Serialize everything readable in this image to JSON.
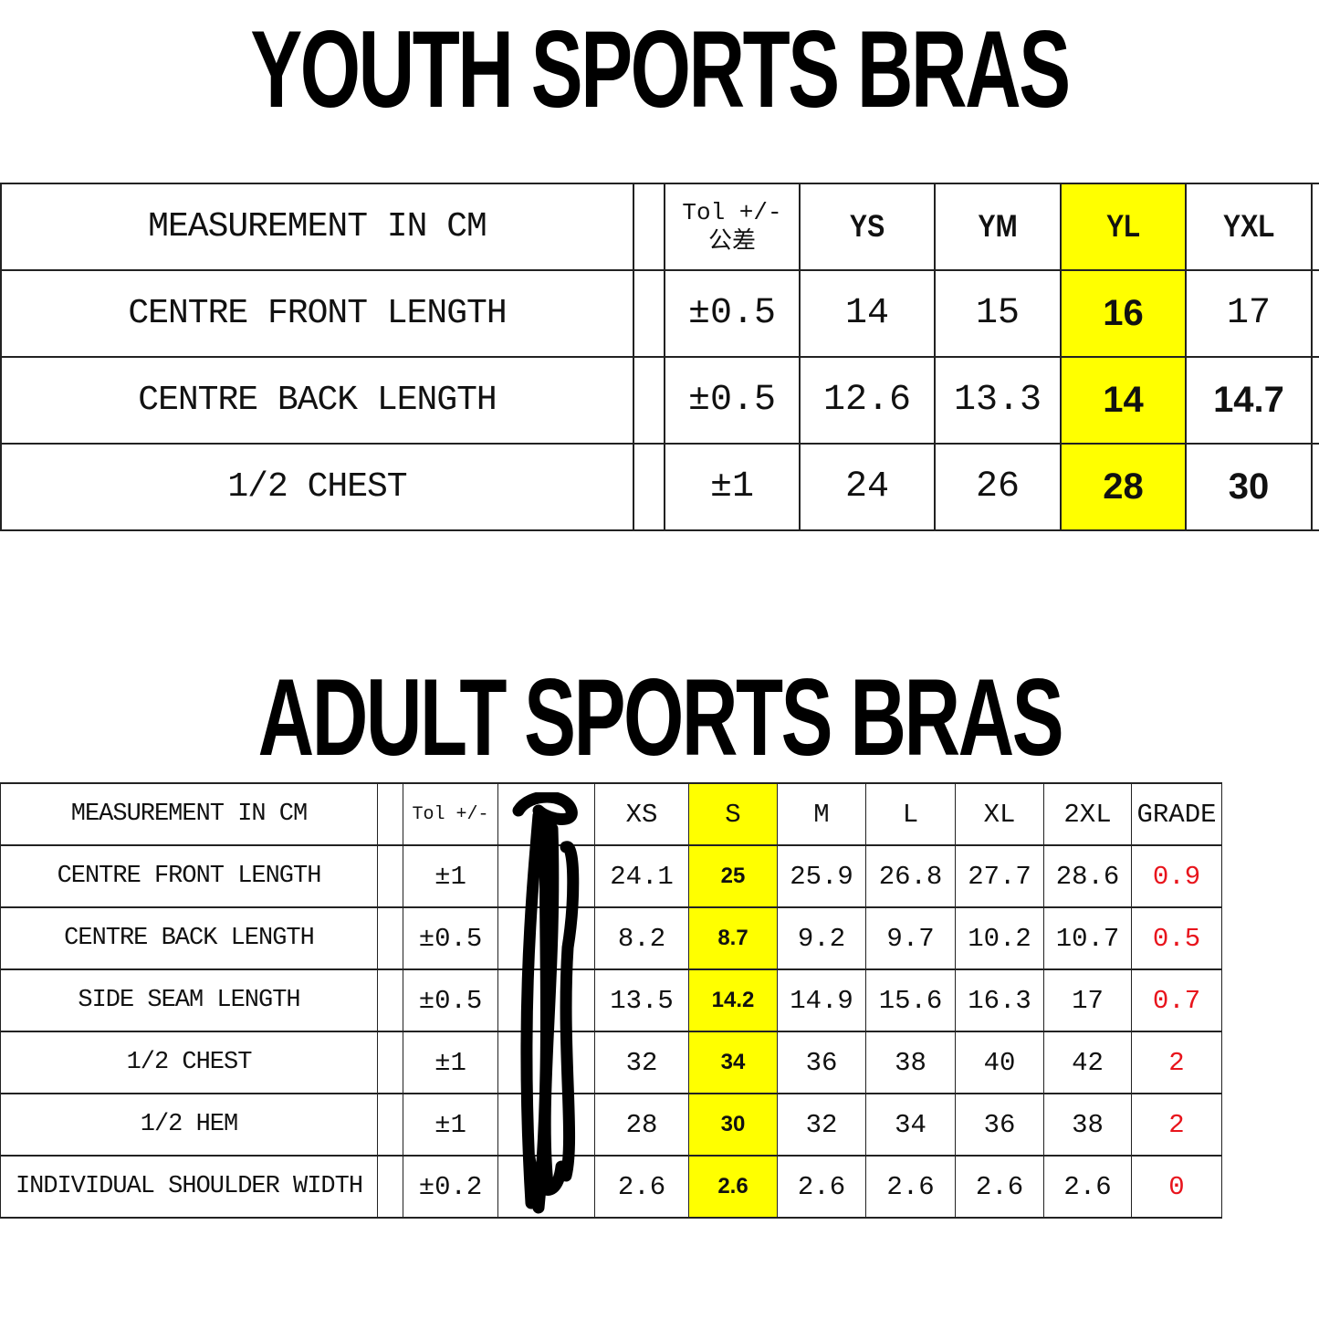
{
  "youth": {
    "title": "YOUTH SPORTS BRAS",
    "header": {
      "measurement": "MEASUREMENT IN CM",
      "tol_line1": "Tol +/-",
      "tol_line2": "公差",
      "sizes": [
        "YS",
        "YM",
        "YL",
        "YXL"
      ]
    },
    "highlight_size": "YL",
    "rows": [
      {
        "label": "CENTRE FRONT LENGTH",
        "tol": "±0.5",
        "values": [
          "14",
          "15",
          "16",
          "17"
        ]
      },
      {
        "label": "CENTRE BACK LENGTH",
        "tol": "±0.5",
        "values": [
          "12.6",
          "13.3",
          "14",
          "14.7"
        ]
      },
      {
        "label": "1/2 CHEST",
        "tol": "±1",
        "values": [
          "24",
          "26",
          "28",
          "30"
        ]
      }
    ]
  },
  "adult": {
    "title": "ADULT SPORTS BRAS",
    "header": {
      "measurement": "MEASUREMENT IN CM",
      "tol": "Tol +/-",
      "sizes": [
        "XS",
        "S",
        "M",
        "L",
        "XL",
        "2XL"
      ],
      "grade": "GRADE"
    },
    "highlight_size": "S",
    "rows": [
      {
        "label": "CENTRE FRONT LENGTH",
        "tol": "±1",
        "values": [
          "24.1",
          "25",
          "25.9",
          "26.8",
          "27.7",
          "28.6"
        ],
        "grade": "0.9"
      },
      {
        "label": "CENTRE BACK LENGTH",
        "tol": "±0.5",
        "values": [
          "8.2",
          "8.7",
          "9.2",
          "9.7",
          "10.2",
          "10.7"
        ],
        "grade": "0.5"
      },
      {
        "label": "SIDE SEAM LENGTH",
        "tol": "±0.5",
        "values": [
          "13.5",
          "14.2",
          "14.9",
          "15.6",
          "16.3",
          "17"
        ],
        "grade": "0.7"
      },
      {
        "label": "1/2 CHEST",
        "tol": "±1",
        "values": [
          "32",
          "34",
          "36",
          "38",
          "40",
          "42"
        ],
        "grade": "2"
      },
      {
        "label": "1/2 HEM",
        "tol": "±1",
        "values": [
          "28",
          "30",
          "32",
          "34",
          "36",
          "38"
        ],
        "grade": "2"
      },
      {
        "label": "INDIVIDUAL SHOULDER WIDTH",
        "tol": "±0.2",
        "values": [
          "2.6",
          "2.6",
          "2.6",
          "2.6",
          "2.6",
          "2.6"
        ],
        "grade": "0"
      }
    ]
  },
  "colors": {
    "highlight": "#ffff00",
    "grade": "#e8141c"
  }
}
